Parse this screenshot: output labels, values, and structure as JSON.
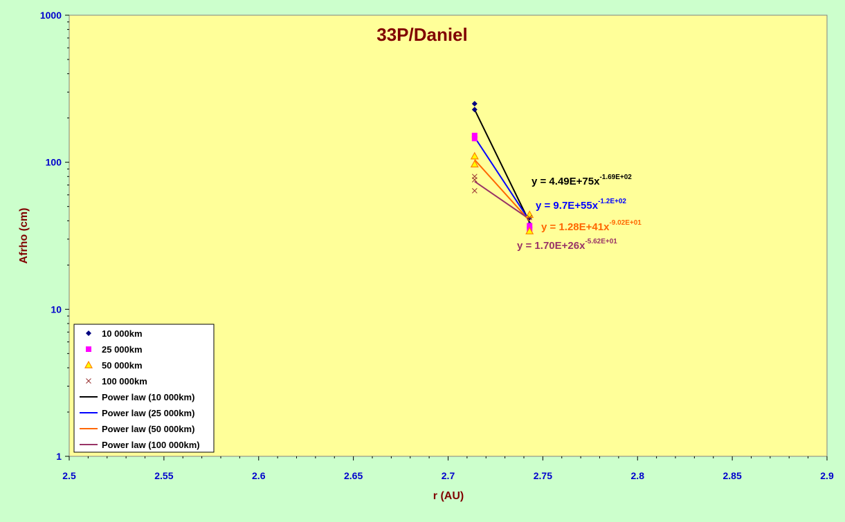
{
  "chart_data": {
    "type": "scatter",
    "title": "33P/Daniel",
    "xlabel": "r (AU)",
    "ylabel": "Afrho (cm)",
    "xlim": [
      2.5,
      2.9
    ],
    "ylim": [
      1,
      1000
    ],
    "y_scale": "log",
    "x_ticks": [
      "2.5",
      "2.55",
      "2.6",
      "2.65",
      "2.7",
      "2.75",
      "2.8",
      "2.85",
      "2.9"
    ],
    "y_ticks": [
      "1",
      "10",
      "100",
      "1000"
    ],
    "grid": false,
    "legend_position": "bottom-left",
    "plot_background": "#ffff99",
    "page_background": "#ccffcc",
    "series": [
      {
        "name": "10 000km",
        "marker": "diamond",
        "color": "#000080",
        "points": [
          [
            2.714,
            250
          ],
          [
            2.714,
            228
          ],
          [
            2.743,
            38
          ],
          [
            2.743,
            42
          ]
        ]
      },
      {
        "name": "25 000km",
        "marker": "square",
        "color": "#ff00ff",
        "points": [
          [
            2.714,
            152
          ],
          [
            2.714,
            145
          ],
          [
            2.743,
            37
          ],
          [
            2.743,
            35
          ]
        ]
      },
      {
        "name": "50 000km",
        "marker": "triangle",
        "color": "#ff8000",
        "points": [
          [
            2.714,
            110
          ],
          [
            2.714,
            97
          ],
          [
            2.743,
            44
          ],
          [
            2.743,
            34
          ]
        ]
      },
      {
        "name": "100 000km",
        "marker": "x",
        "color": "#993333",
        "points": [
          [
            2.714,
            80
          ],
          [
            2.714,
            76
          ],
          [
            2.714,
            64
          ],
          [
            2.743,
            42
          ]
        ]
      }
    ],
    "trendlines": [
      {
        "name": "Power law (10 000km)",
        "color": "#000000",
        "points": [
          [
            2.714,
            228
          ],
          [
            2.743,
            39
          ]
        ],
        "eq_main": "y = 4.49E+75x",
        "eq_exp": "-1.69E+02"
      },
      {
        "name": "Power law (25 000km)",
        "color": "#0000ff",
        "points": [
          [
            2.714,
            148
          ],
          [
            2.743,
            40
          ]
        ],
        "eq_main": "y = 9.7E+55x",
        "eq_exp": "-1.2E+02"
      },
      {
        "name": "Power law (50 000km)",
        "color": "#ff6600",
        "points": [
          [
            2.714,
            104
          ],
          [
            2.743,
            40
          ]
        ],
        "eq_main": "y = 1.28E+41x",
        "eq_exp": "-9.02E+01"
      },
      {
        "name": "Power law (100 000km)",
        "color": "#993366",
        "points": [
          [
            2.714,
            74
          ],
          [
            2.743,
            41
          ]
        ],
        "eq_main": "y = 1.70E+26x",
        "eq_exp": "-5.62E+01"
      }
    ]
  }
}
